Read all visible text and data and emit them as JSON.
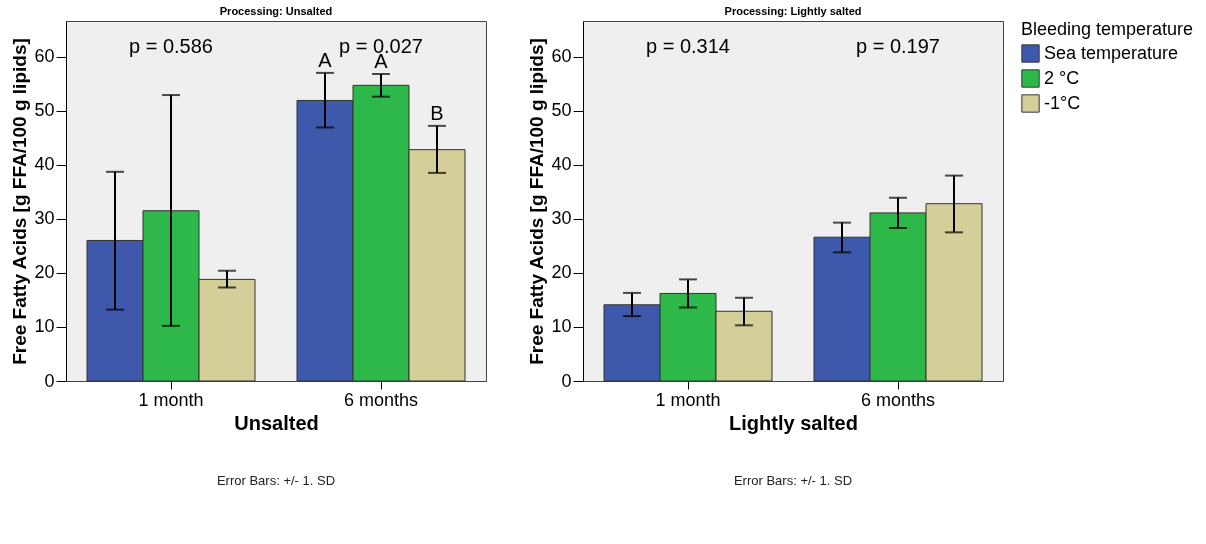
{
  "chart_data": [
    {
      "type": "bar",
      "title": "Processing: Unsalted",
      "xlabel": "Unsalted",
      "ylabel": "Free Fatty Acids [g FFA/100 g lipids]",
      "categories": [
        "1 month",
        "6 months"
      ],
      "ylim": [
        0,
        66.6
      ],
      "yticks": [
        0,
        10,
        20,
        30,
        40,
        50,
        60
      ],
      "grid": false,
      "legend": false,
      "series": [
        {
          "color": "#3e58ac",
          "values": [
            26.0,
            51.9
          ],
          "errors": [
            [
              13.2,
              38.7
            ],
            [
              46.9,
              57.0
            ]
          ],
          "value_labels": [
            null,
            "A"
          ]
        },
        {
          "color": "#2eb84a",
          "values": [
            31.5,
            54.7
          ],
          "errors": [
            [
              10.2,
              52.9
            ],
            [
              52.6,
              56.8
            ]
          ],
          "value_labels": [
            null,
            "A"
          ]
        },
        {
          "color": "#d4ce98",
          "values": [
            18.8,
            42.8
          ],
          "errors": [
            [
              17.3,
              20.4
            ],
            [
              38.5,
              47.2
            ]
          ],
          "value_labels": [
            null,
            "B"
          ]
        }
      ],
      "annotations": [
        "p = 0.586",
        "p = 0.027",
        "Error Bars: +/- 1. SD"
      ]
    },
    {
      "type": "bar",
      "title": "Processing: Lightly salted",
      "xlabel": "Lightly salted",
      "ylabel": "Free Fatty Acids [g FFA/100 g lipids]",
      "categories": [
        "1 month",
        "6 months"
      ],
      "ylim": [
        0,
        66.6
      ],
      "yticks": [
        0,
        10,
        20,
        30,
        40,
        50,
        60
      ],
      "grid": false,
      "legend": "right",
      "legend_title": "Bleeding temperature",
      "series": [
        {
          "name": "Sea temperature",
          "color": "#3e58ac",
          "values": [
            14.1,
            26.6
          ],
          "errors": [
            [
              12.0,
              16.3
            ],
            [
              23.8,
              29.3
            ]
          ]
        },
        {
          "name": "2 °C",
          "color": "#2eb84a",
          "values": [
            16.2,
            31.1
          ],
          "errors": [
            [
              13.6,
              18.8
            ],
            [
              28.3,
              33.9
            ]
          ]
        },
        {
          "name": "-1°C",
          "color": "#d4ce98",
          "values": [
            12.9,
            32.8
          ],
          "errors": [
            [
              10.3,
              15.4
            ],
            [
              27.5,
              38.0
            ]
          ]
        }
      ],
      "annotations": [
        "p = 0.314",
        "p = 0.197",
        "Error Bars: +/- 1. SD"
      ]
    }
  ]
}
